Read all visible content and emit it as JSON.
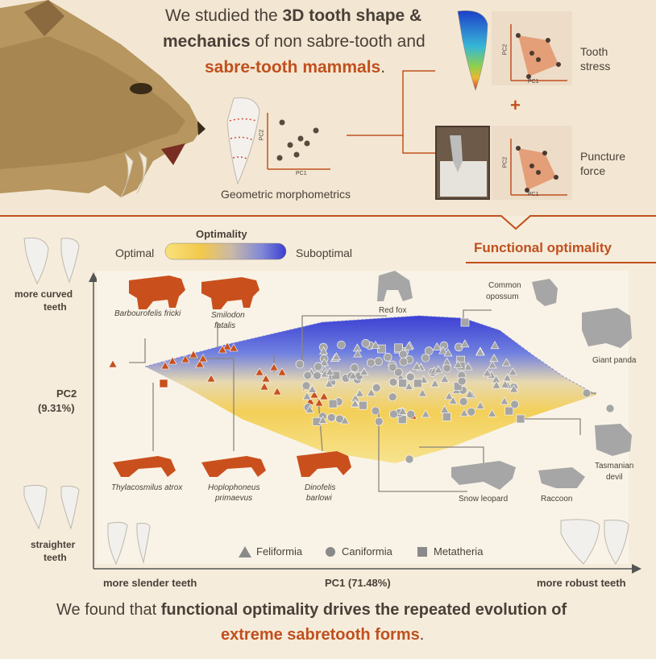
{
  "header": {
    "line1_pre": "We studied the ",
    "line1_bold": "3D tooth shape &",
    "line2_bold": "mechanics",
    "line2_post": " of non sabre-tooth and",
    "line3_hl": "sabre-tooth mammals",
    "line3_post": "."
  },
  "top_panels": {
    "morpho_label": "Geometric morphometrics",
    "tooth_stress_line1": "Tooth",
    "tooth_stress_line2": "stress",
    "plus": "+",
    "puncture_line1": "Puncture",
    "puncture_line2": "force",
    "pc1": "PC1",
    "pc2": "PC2"
  },
  "section_title": "Functional optimality",
  "optimality_bar": {
    "title": "Optimality",
    "left": "Optimal",
    "right": "Suboptimal",
    "gradient": [
      "#f9e27a",
      "#f2c84c",
      "#c9b9a8",
      "#7f88d8",
      "#3b3fd0"
    ]
  },
  "axes": {
    "y_title": "PC2",
    "y_pct": "(9.31%)",
    "y_top_line1": "more curved",
    "y_top_line2": "teeth",
    "y_bottom_line1": "straighter",
    "y_bottom_line2": "teeth",
    "x_left": "more slender teeth",
    "x_title": "PC1 (71.48%)",
    "x_right": "more robust teeth"
  },
  "species": {
    "barbourofelis": "Barbourofelis fricki",
    "smilodon_1": "Smilodon",
    "smilodon_2": "fatalis",
    "thylacosmilus": "Thylacosmilus atrox",
    "hoplophoneus_1": "Hoplophoneus",
    "hoplophoneus_2": "primaevus",
    "dinofelis_1": "Dinofelis",
    "dinofelis_2": "barlowi",
    "red_fox": "Red fox",
    "opossum_1": "Common",
    "opossum_2": "opossum",
    "giant_panda": "Giant panda",
    "tasmanian_1": "Tasmanian",
    "tasmanian_2": "devil",
    "snow_leopard": "Snow leopard",
    "raccoon": "Raccoon"
  },
  "legend": {
    "feliformia": "Feliformia",
    "caniformia": "Caniformia",
    "metatheria": "Metatheria"
  },
  "footer": {
    "line1_pre": "We found that ",
    "line1_bold": "functional optimality drives the repeated evolution of",
    "line2_hl": "extreme sabretooth forms",
    "line2_post": "."
  },
  "colors": {
    "sabre": "#c9501d",
    "grey_points": "#a5a5a5",
    "accent": "#c0501e",
    "text": "#4a4038"
  }
}
